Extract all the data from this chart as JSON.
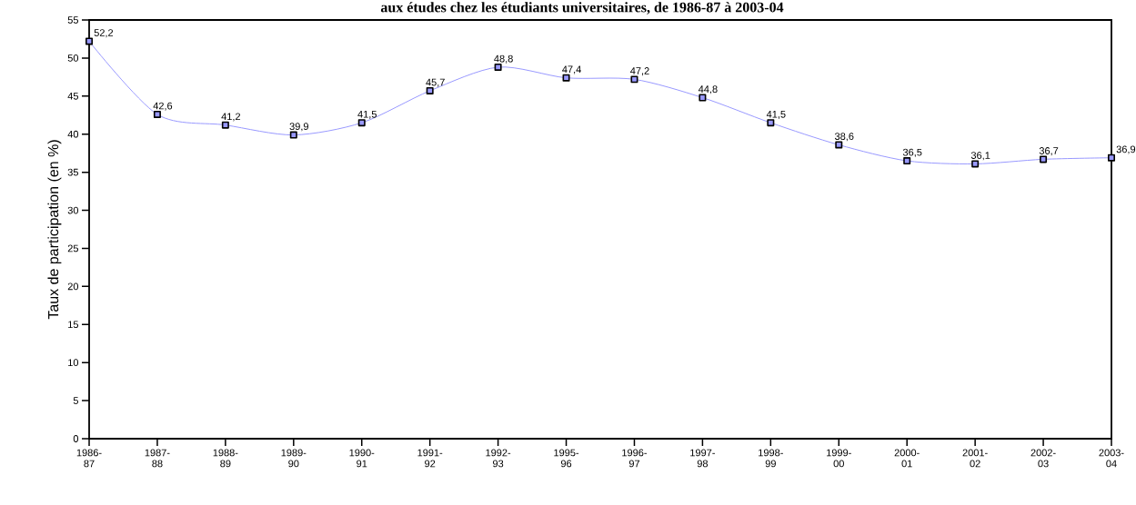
{
  "chart_data": {
    "type": "line",
    "title": "aux études chez les étudiants universitaires, de 1986-87 à 2003-04",
    "ylabel": "Taux de participation (en %)",
    "categories": [
      "1986-87",
      "1987-88",
      "1988-89",
      "1989-90",
      "1990-91",
      "1991-92",
      "1992-93",
      "1995-96",
      "1996-97",
      "1997-98",
      "1998-99",
      "1999-00",
      "2000-01",
      "2001-02",
      "2002-03",
      "2003-04"
    ],
    "series": [
      {
        "color": "#9999ff",
        "values": [
          52.2,
          42.6,
          41.2,
          39.9,
          41.5,
          45.7,
          48.8,
          47.4,
          47.2,
          44.8,
          41.5,
          38.6,
          36.5,
          36.1,
          36.7,
          36.9
        ],
        "value_labels": [
          "52,2",
          "42,6",
          "41,2",
          "39,9",
          "41,5",
          "45,7",
          "48,8",
          "47,4",
          "47,2",
          "44,8",
          "41,5",
          "38,6",
          "36,5",
          "36,1",
          "36,7",
          "36,9"
        ]
      }
    ],
    "ylim": [
      0,
      55
    ],
    "yticks": [
      0,
      5,
      10,
      15,
      20,
      25,
      30,
      35,
      40,
      45,
      50,
      55
    ],
    "marker": "square",
    "line_style": "solid",
    "grid": false
  }
}
